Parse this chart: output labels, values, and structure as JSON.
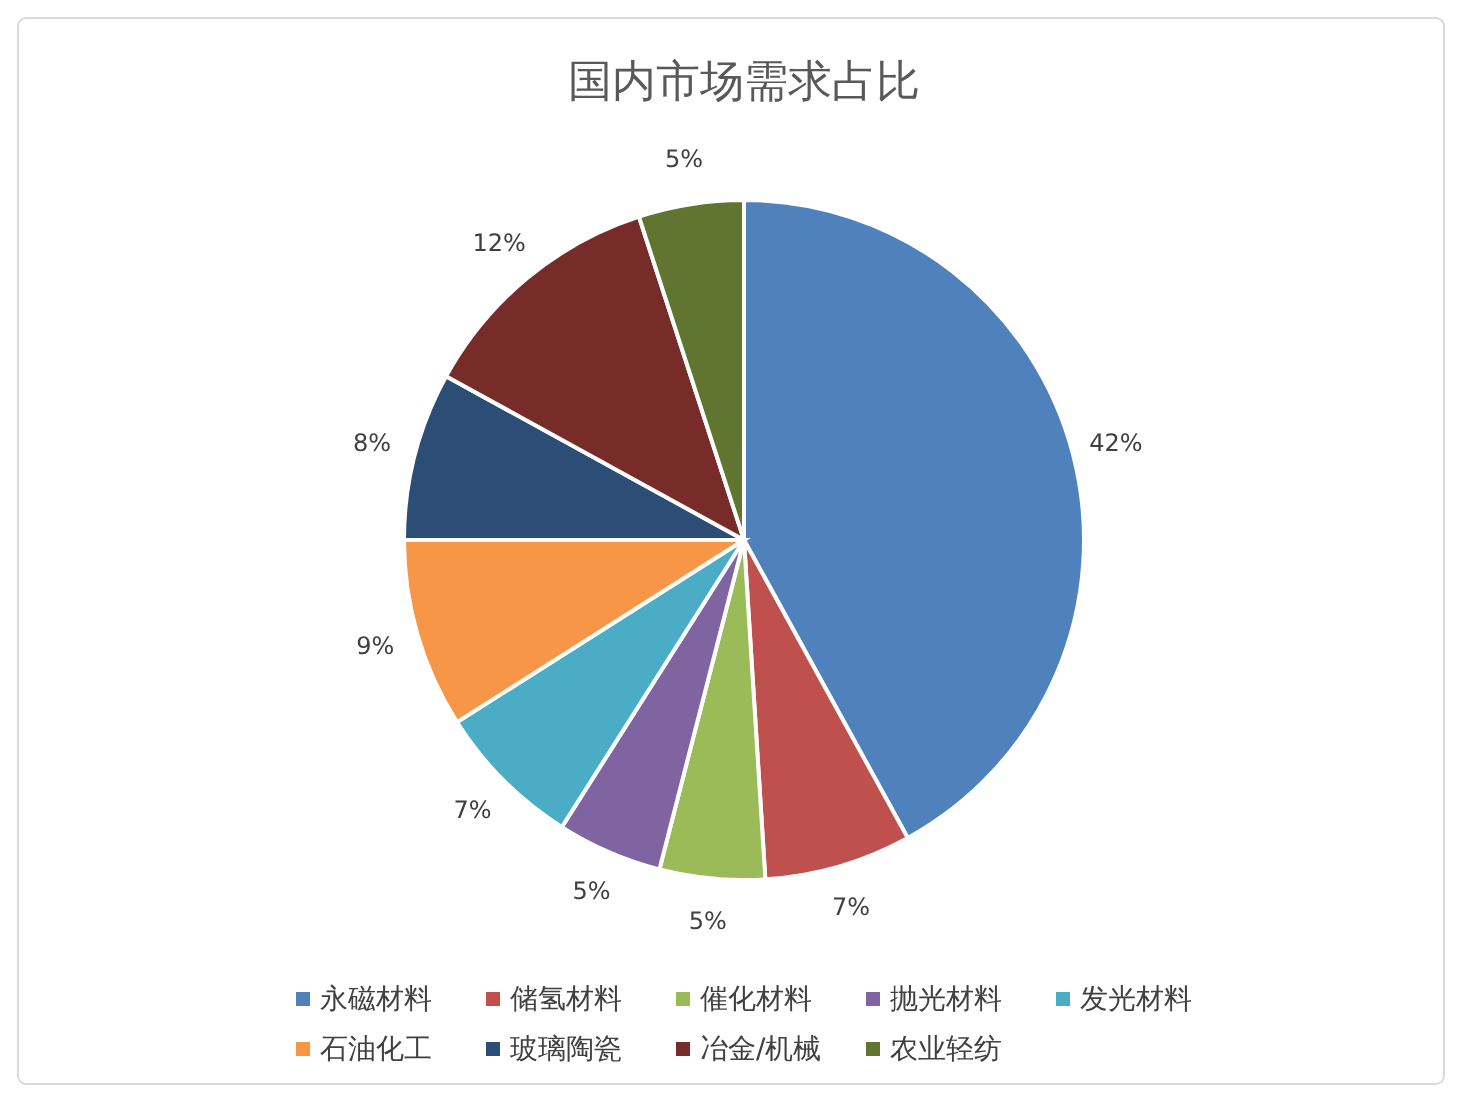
{
  "chart_data": {
    "type": "pie",
    "title": "国内市场需求占比",
    "categories": [
      "永磁材料",
      "储氢材料",
      "催化材料",
      "抛光材料",
      "发光材料",
      "石油化工",
      "玻璃陶瓷",
      "冶金/机械",
      "农业轻纺"
    ],
    "values": [
      42,
      7,
      5,
      5,
      7,
      9,
      8,
      12,
      5
    ],
    "colors": [
      "#4f81bd",
      "#c0504d",
      "#9bbb59",
      "#8064a2",
      "#4bacc6",
      "#f79646",
      "#2c4d75",
      "#772c2a",
      "#5f7530"
    ],
    "value_labels": [
      "42%",
      "7%",
      "5%",
      "5%",
      "7%",
      "9%",
      "8%",
      "12%",
      "5%"
    ],
    "legend": "bottom"
  }
}
